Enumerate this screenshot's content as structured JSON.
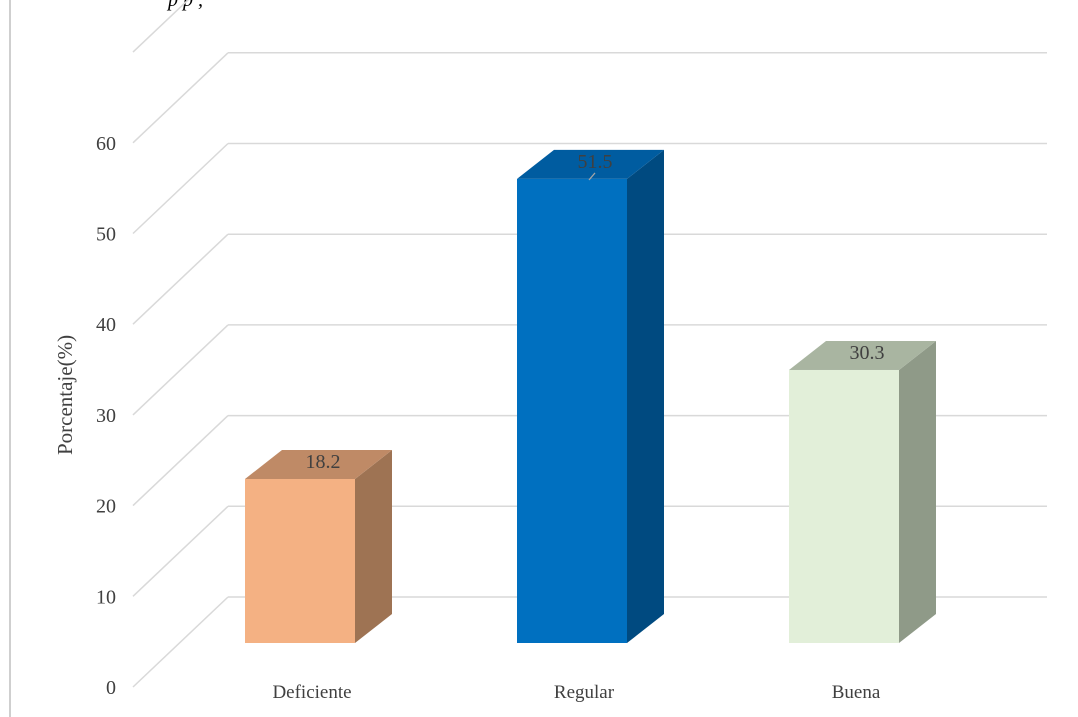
{
  "caption_fragment": "p p ,",
  "chart_data": {
    "type": "bar",
    "title": "",
    "xlabel": "",
    "ylabel": "Porcentaje(%)",
    "ylim": [
      0,
      60
    ],
    "yticks": [
      0,
      10,
      20,
      30,
      40,
      50,
      60
    ],
    "grid": true,
    "categories": [
      "Deficiente",
      "Regular",
      "Buena"
    ],
    "values": [
      18.2,
      51.5,
      30.3
    ],
    "data_labels": [
      "18.2",
      "51.5",
      "30.3"
    ],
    "colors": {
      "Deficiente": {
        "front": "#f4b183",
        "top": "#bf8a66",
        "side": "#9e7353"
      },
      "Regular": {
        "front": "#0070c0",
        "top": "#005ca0",
        "side": "#004a80"
      },
      "Buena": {
        "front": "#e2efd9",
        "top": "#a9b5a1",
        "side": "#8f9a88"
      }
    },
    "gridline_color": "#d9d9d9"
  }
}
